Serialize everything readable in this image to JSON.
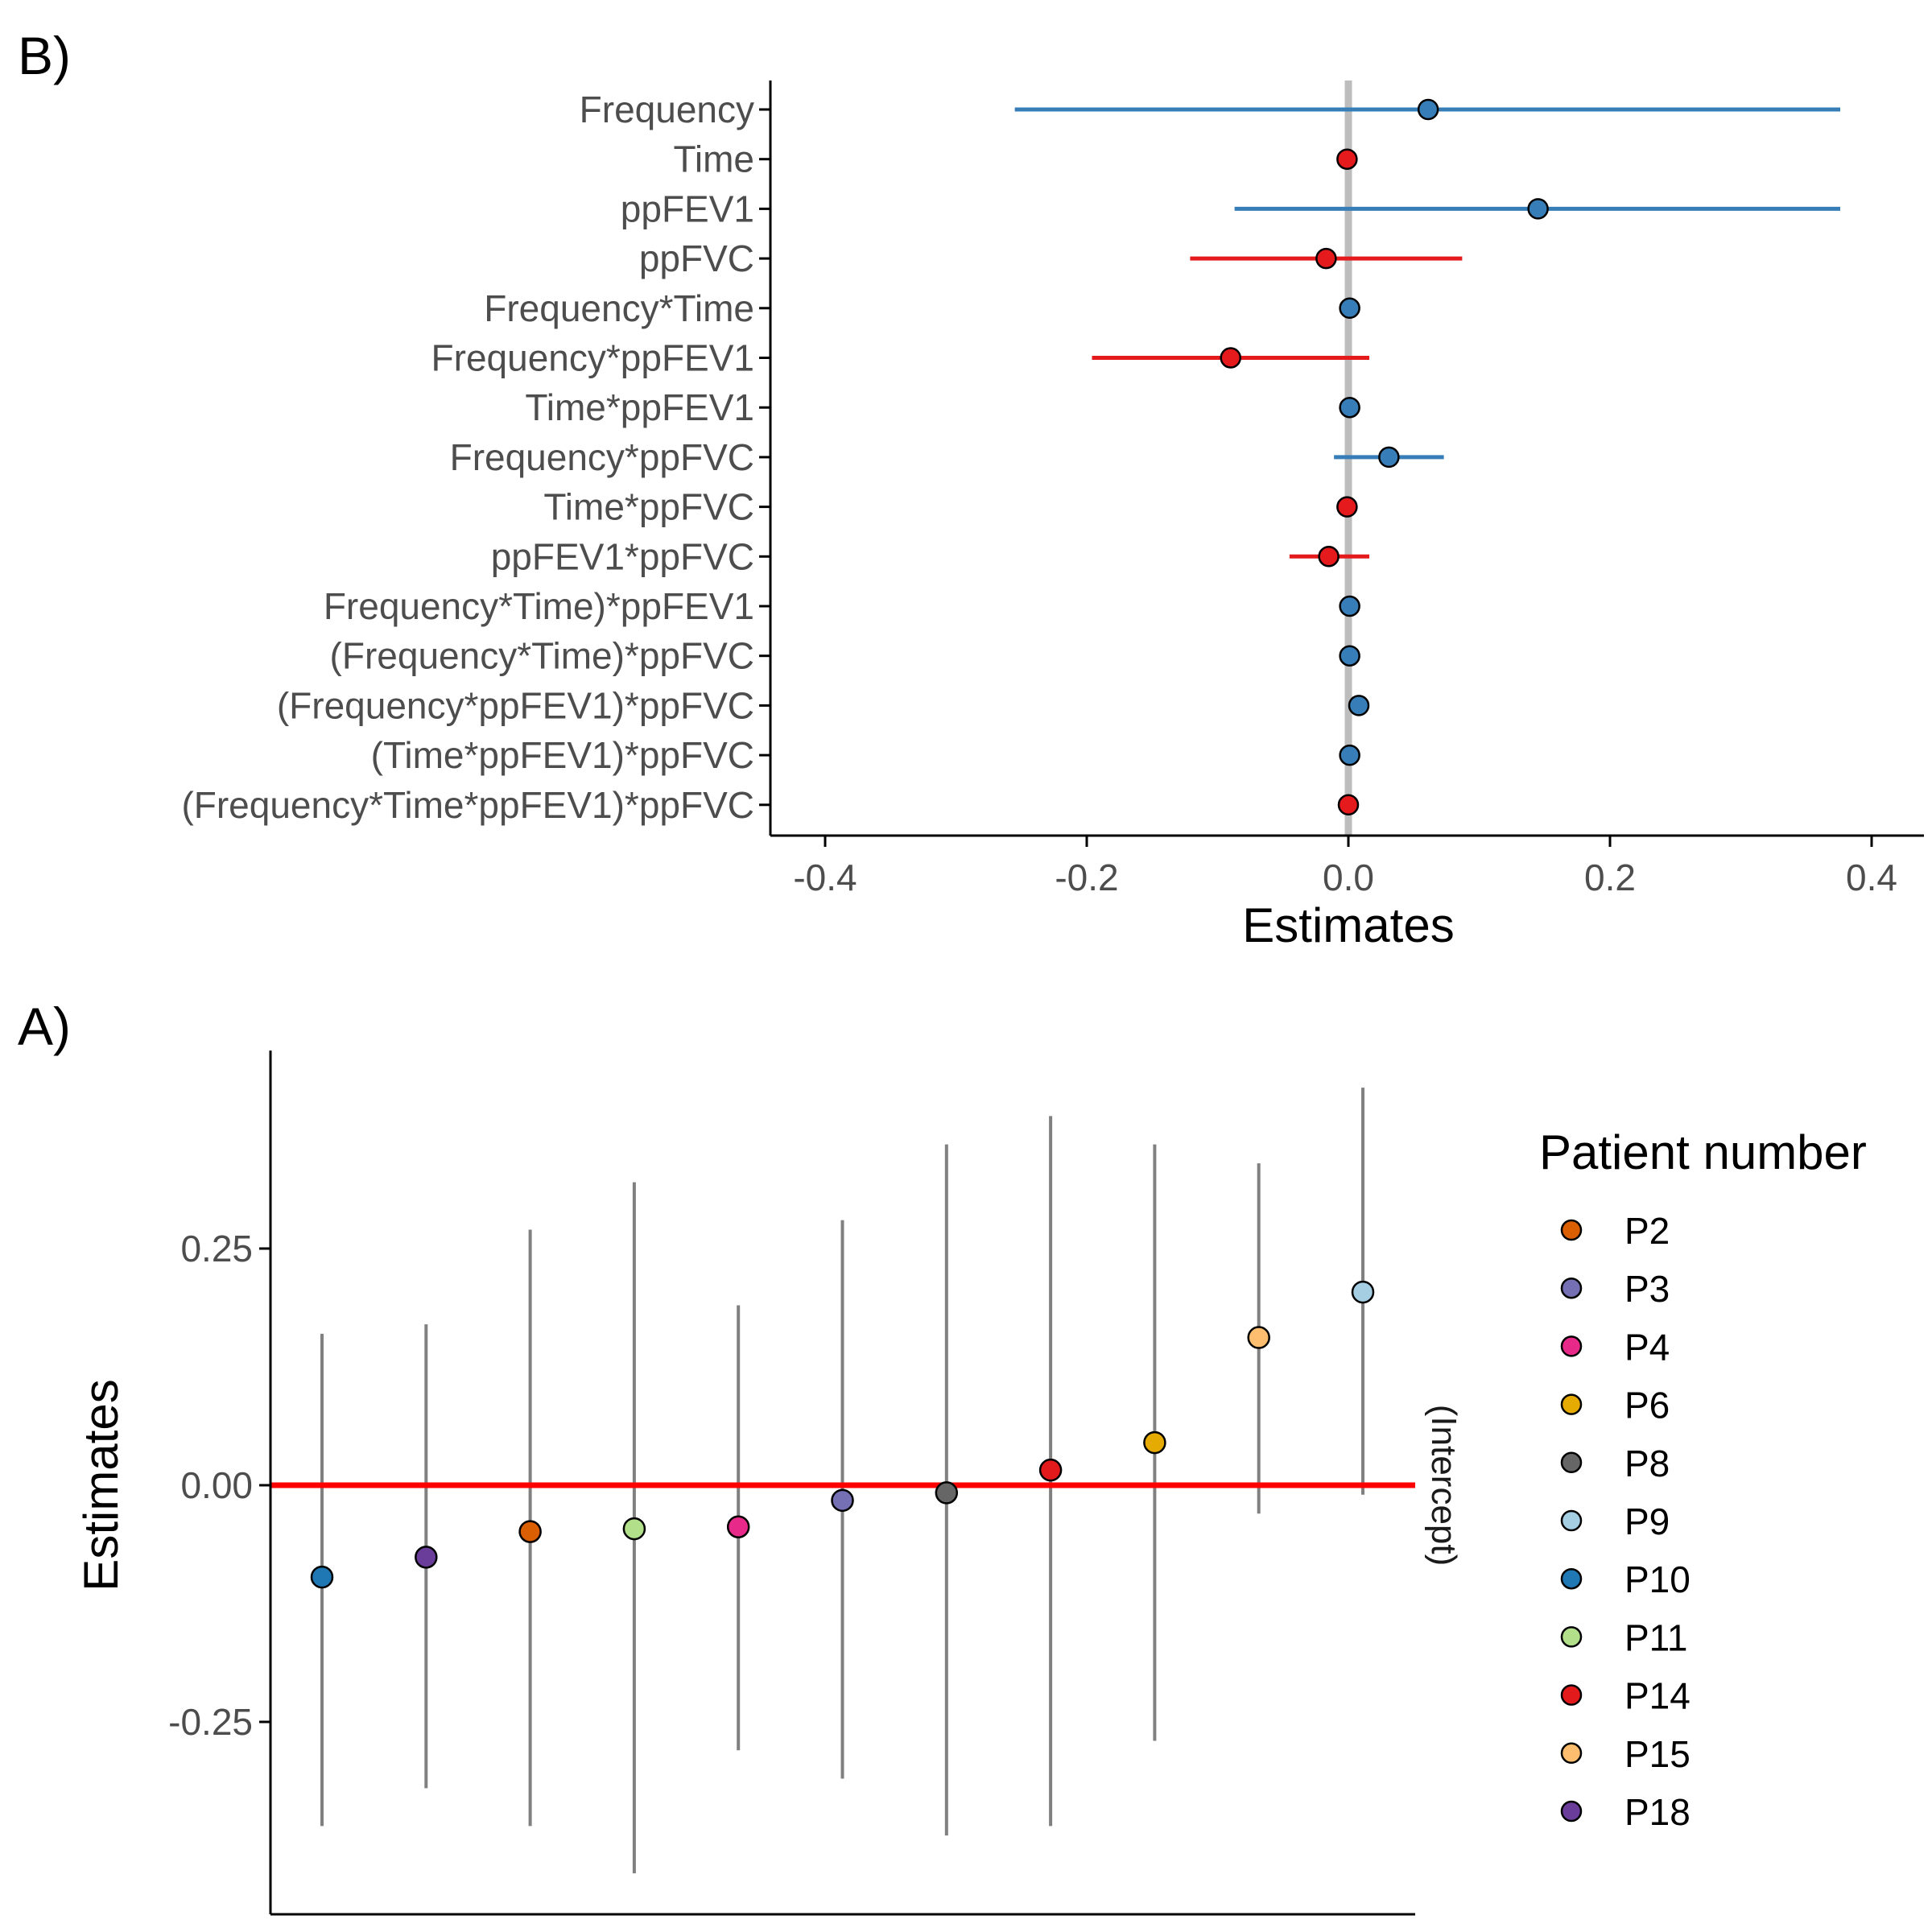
{
  "panel_labels": {
    "top": "B)",
    "bottom": "A)"
  },
  "chart_data": [
    {
      "panel": "B)",
      "type": "scatter",
      "orientation": "horizontal",
      "title": "",
      "xlabel": "Estimates",
      "ylabel": "",
      "xlim": [
        -0.44,
        0.44
      ],
      "xticks": [
        -0.4,
        -0.2,
        0.0,
        0.2,
        0.4
      ],
      "xtick_labels": [
        "-0.4",
        "-0.2",
        "0.0",
        "0.2",
        "0.4"
      ],
      "reference_line": {
        "x": 0,
        "color": "#bdbdbd"
      },
      "colors": {
        "positive": "#377eb8",
        "negative": "#e41a1c"
      },
      "grid": false,
      "terms": [
        {
          "label": "Frequency",
          "estimate": 0.061,
          "lo": -0.255,
          "hi": 0.376,
          "sign": "positive"
        },
        {
          "label": "Time",
          "estimate": -0.001,
          "lo": -0.001,
          "hi": -0.001,
          "sign": "negative"
        },
        {
          "label": "ppFEV1",
          "estimate": 0.145,
          "lo": -0.087,
          "hi": 0.376,
          "sign": "positive"
        },
        {
          "label": "ppFVC",
          "estimate": -0.017,
          "lo": -0.121,
          "hi": 0.087,
          "sign": "negative"
        },
        {
          "label": "Frequency*Time",
          "estimate": 0.001,
          "lo": 0.001,
          "hi": 0.001,
          "sign": "positive"
        },
        {
          "label": "Frequency*ppFEV1",
          "estimate": -0.09,
          "lo": -0.196,
          "hi": 0.016,
          "sign": "negative"
        },
        {
          "label": "Time*ppFEV1",
          "estimate": 0.001,
          "lo": 0.001,
          "hi": 0.001,
          "sign": "positive"
        },
        {
          "label": "Frequency*ppFVC",
          "estimate": 0.031,
          "lo": -0.011,
          "hi": 0.073,
          "sign": "positive"
        },
        {
          "label": "Time*ppFVC",
          "estimate": -0.001,
          "lo": -0.001,
          "hi": -0.001,
          "sign": "negative"
        },
        {
          "label": "ppFEV1*ppFVC",
          "estimate": -0.015,
          "lo": -0.045,
          "hi": 0.016,
          "sign": "negative"
        },
        {
          "label": "Frequency*Time)*ppFEV1",
          "estimate": 0.001,
          "lo": 0.001,
          "hi": 0.001,
          "sign": "positive"
        },
        {
          "label": "(Frequency*Time)*ppFVC",
          "estimate": 0.001,
          "lo": 0.001,
          "hi": 0.001,
          "sign": "positive"
        },
        {
          "label": "(Frequency*ppFEV1)*ppFVC",
          "estimate": 0.008,
          "lo": 0.008,
          "hi": 0.008,
          "sign": "positive"
        },
        {
          "label": "(Time*ppFEV1)*ppFVC",
          "estimate": 0.001,
          "lo": 0.001,
          "hi": 0.001,
          "sign": "positive"
        },
        {
          "label": "(Frequency*Time*ppFEV1)*ppFVC",
          "estimate": 0.0,
          "lo": 0.0,
          "hi": 0.0,
          "sign": "negative"
        }
      ]
    },
    {
      "panel": "A)",
      "type": "scatter",
      "title": "",
      "xlabel": "",
      "ylabel": "Estimates",
      "ylim": [
        -0.42,
        0.42
      ],
      "yticks": [
        -0.25,
        0.0,
        0.25
      ],
      "ytick_labels": [
        "-0.25",
        "0.00",
        "0.25"
      ],
      "reference_line": {
        "y": 0,
        "color": "#ff0000"
      },
      "interval_color": "#808080",
      "facet_label": "(Intercept)",
      "grid": false,
      "legend": {
        "title": "Patient number",
        "position": "right"
      },
      "points": [
        {
          "patient": "P10",
          "estimate": -0.097,
          "lo": -0.36,
          "hi": 0.16,
          "color": "#1f78b4"
        },
        {
          "patient": "P18",
          "estimate": -0.076,
          "lo": -0.32,
          "hi": 0.17,
          "color": "#6a3d9a"
        },
        {
          "patient": "P2",
          "estimate": -0.049,
          "lo": -0.36,
          "hi": 0.27,
          "color": "#d95f02"
        },
        {
          "patient": "P11",
          "estimate": -0.046,
          "lo": -0.41,
          "hi": 0.32,
          "color": "#b2df8a"
        },
        {
          "patient": "P4",
          "estimate": -0.044,
          "lo": -0.28,
          "hi": 0.19,
          "color": "#e7298a"
        },
        {
          "patient": "P3",
          "estimate": -0.016,
          "lo": -0.31,
          "hi": 0.28,
          "color": "#7570b3"
        },
        {
          "patient": "P8",
          "estimate": -0.008,
          "lo": -0.37,
          "hi": 0.36,
          "color": "#666666"
        },
        {
          "patient": "P14",
          "estimate": 0.016,
          "lo": -0.36,
          "hi": 0.39,
          "color": "#e31a1c"
        },
        {
          "patient": "P6",
          "estimate": 0.045,
          "lo": -0.27,
          "hi": 0.36,
          "color": "#e6ab02"
        },
        {
          "patient": "P15",
          "estimate": 0.156,
          "lo": -0.03,
          "hi": 0.34,
          "color": "#fdbf6f"
        },
        {
          "patient": "P9",
          "estimate": 0.204,
          "lo": -0.01,
          "hi": 0.42,
          "color": "#a6cee3"
        }
      ],
      "legend_entries": [
        {
          "label": "P2",
          "color": "#d95f02"
        },
        {
          "label": "P3",
          "color": "#7570b3"
        },
        {
          "label": "P4",
          "color": "#e7298a"
        },
        {
          "label": "P6",
          "color": "#e6ab02"
        },
        {
          "label": "P8",
          "color": "#666666"
        },
        {
          "label": "P9",
          "color": "#a6cee3"
        },
        {
          "label": "P10",
          "color": "#1f78b4"
        },
        {
          "label": "P11",
          "color": "#b2df8a"
        },
        {
          "label": "P14",
          "color": "#e31a1c"
        },
        {
          "label": "P15",
          "color": "#fdbf6f"
        },
        {
          "label": "P18",
          "color": "#6a3d9a"
        }
      ]
    }
  ]
}
